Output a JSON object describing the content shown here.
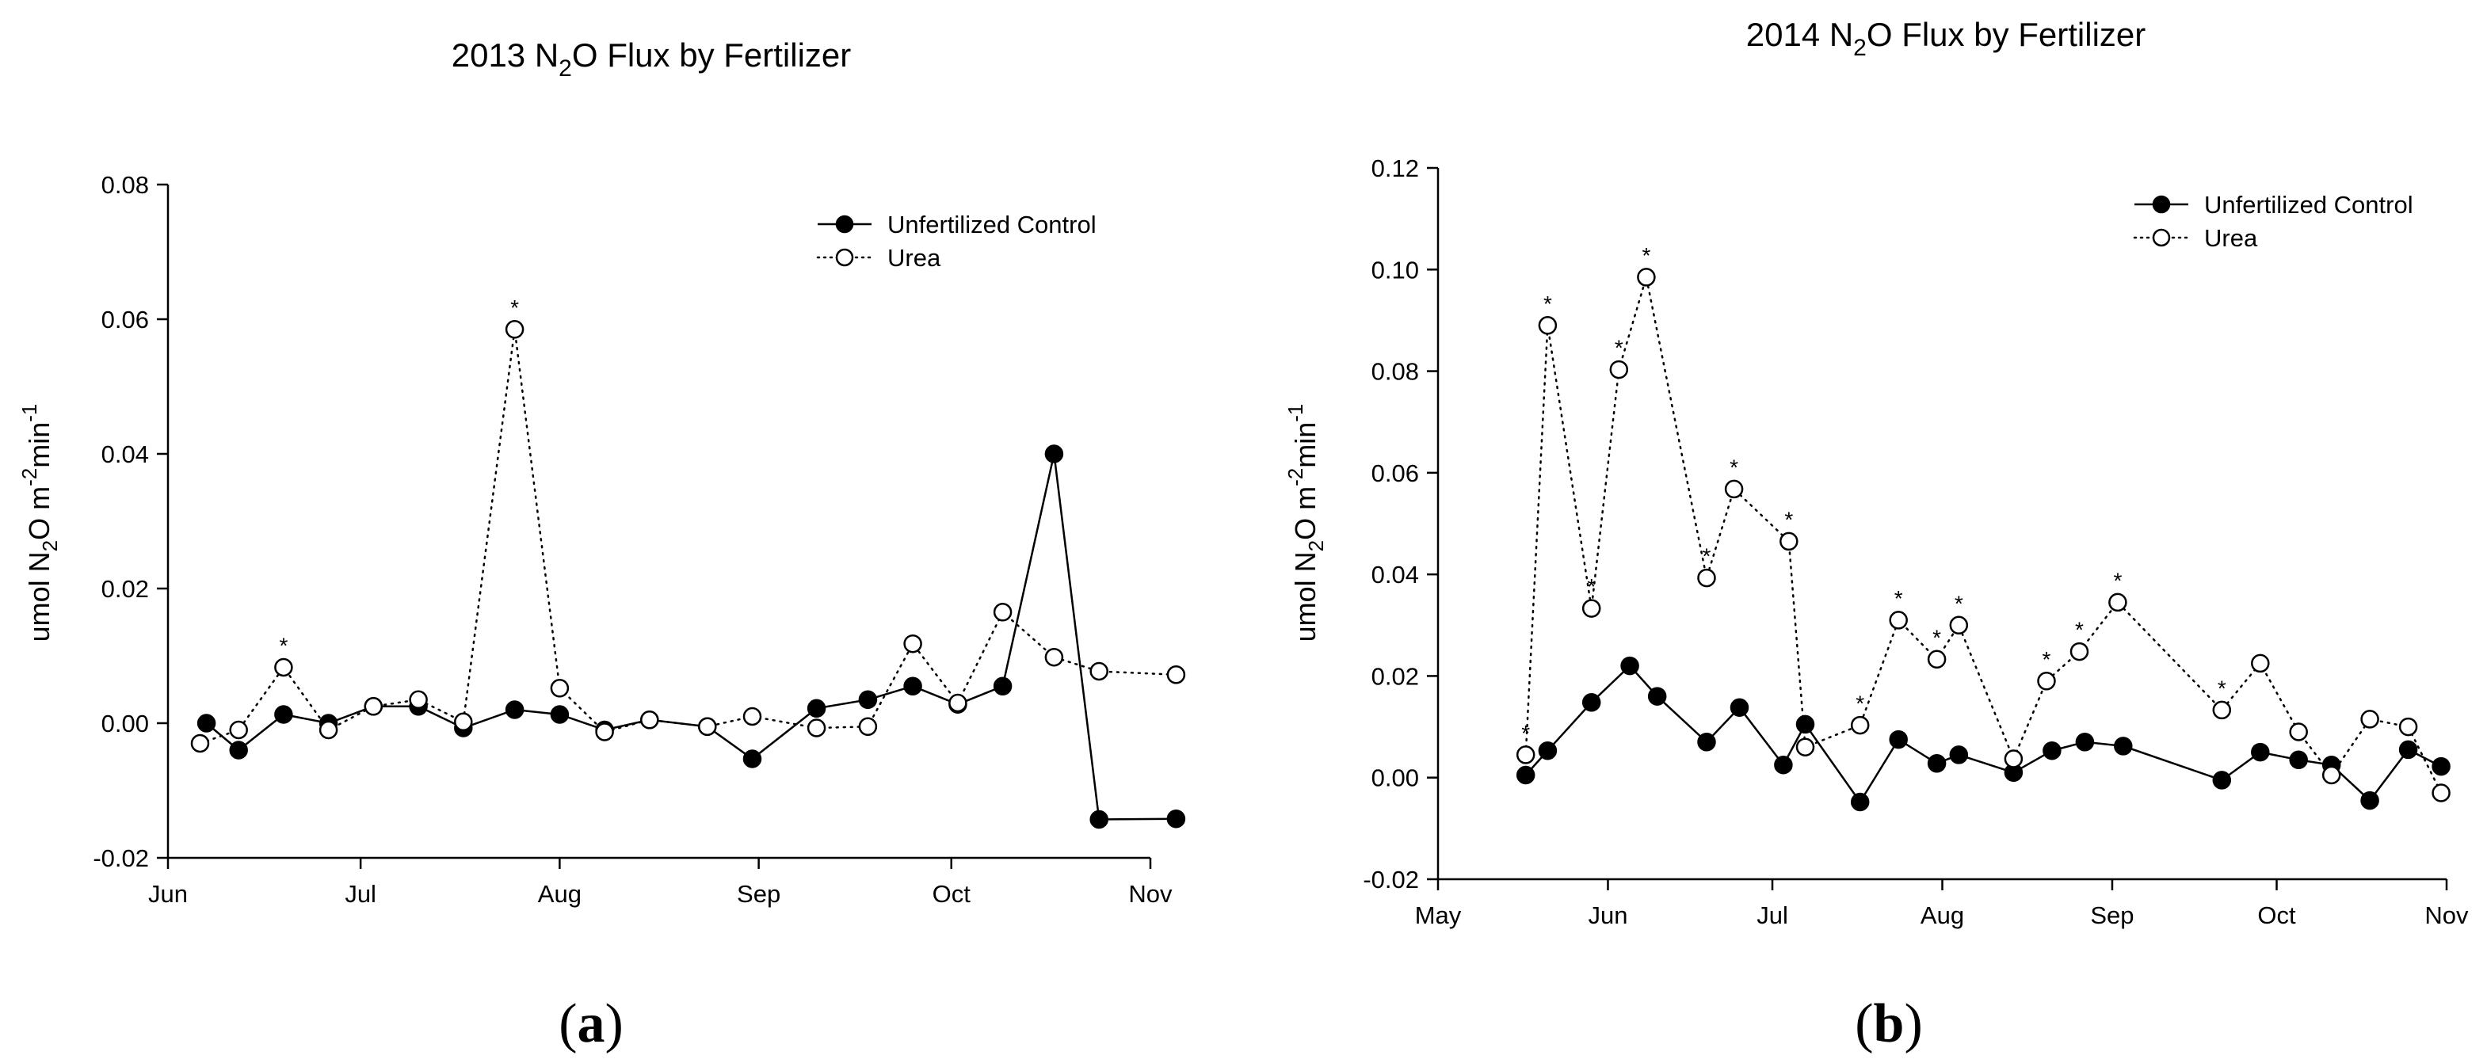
{
  "chart_data": [
    {
      "type": "line",
      "panel": "a",
      "title_prefix": "2013 N",
      "title_sub": "2",
      "title_suffix": "O Flux by Fertilizer",
      "ylabel": {
        "p1": "umol N",
        "s1": "2",
        "p2": "O m",
        "s2": "-2",
        "p3": "min",
        "s3": "-1"
      },
      "xlim": [
        0,
        153
      ],
      "ylim": [
        -0.02,
        0.08
      ],
      "yticks": [
        -0.02,
        0.0,
        0.02,
        0.04,
        0.06,
        0.08
      ],
      "ytick_labels": [
        "-0.02",
        "0.00",
        "0.02",
        "0.04",
        "0.06",
        "0.08"
      ],
      "xticks": [
        0,
        30,
        61,
        92,
        122,
        153
      ],
      "xtick_labels": [
        "Jun",
        "Jul",
        "Aug",
        "Sep",
        "Oct",
        "Nov"
      ],
      "legend": [
        "Unfertilized Control",
        "Urea"
      ],
      "series": [
        {
          "name": "Unfertilized Control",
          "marker": "filled",
          "line": "solid",
          "points": [
            [
              6,
              0.0
            ],
            [
              11,
              -0.004
            ],
            [
              18,
              0.0013
            ],
            [
              25,
              0.0
            ],
            [
              32,
              0.0025
            ],
            [
              39,
              0.0025
            ],
            [
              46,
              -0.0007
            ],
            [
              54,
              0.002
            ],
            [
              61,
              0.0013
            ],
            [
              68,
              -0.001
            ],
            [
              75,
              0.0005
            ],
            [
              84,
              -0.0005
            ],
            [
              91,
              -0.0053
            ],
            [
              101,
              0.0022
            ],
            [
              109,
              0.0035
            ],
            [
              116,
              0.0055
            ],
            [
              123,
              0.0028
            ],
            [
              130,
              0.0055
            ],
            [
              138,
              0.04
            ],
            [
              145,
              -0.0143
            ],
            [
              157,
              -0.0142
            ]
          ]
        },
        {
          "name": "Urea",
          "marker": "open",
          "line": "dotted",
          "points": [
            [
              5,
              -0.003
            ],
            [
              11,
              -0.001
            ],
            [
              18,
              0.0083
            ],
            [
              25,
              -0.001
            ],
            [
              32,
              0.0025
            ],
            [
              39,
              0.0035
            ],
            [
              46,
              0.0002
            ],
            [
              54,
              0.0585
            ],
            [
              61,
              0.0052
            ],
            [
              68,
              -0.0013
            ],
            [
              75,
              0.0005
            ],
            [
              84,
              -0.0005
            ],
            [
              91,
              0.001
            ],
            [
              101,
              -0.0007
            ],
            [
              109,
              -0.0005
            ],
            [
              116,
              0.0118
            ],
            [
              123,
              0.003
            ],
            [
              130,
              0.0165
            ],
            [
              138,
              0.0098
            ],
            [
              145,
              0.0077
            ],
            [
              157,
              0.0072
            ]
          ]
        }
      ],
      "significance": [
        [
          18,
          0.0083
        ],
        [
          54,
          0.0585
        ]
      ],
      "significance_mark": "*"
    },
    {
      "type": "line",
      "panel": "b",
      "title_prefix": "2014 N",
      "title_sub": "2",
      "title_suffix": "O Flux by Fertilizer",
      "ylabel": {
        "p1": "umol N",
        "s1": "2",
        "p2": "O m",
        "s2": "-2",
        "p3": "min",
        "s3": "-1"
      },
      "xlim": [
        0,
        184
      ],
      "ylim": [
        -0.02,
        0.12
      ],
      "yticks": [
        -0.02,
        0.0,
        0.02,
        0.04,
        0.06,
        0.08,
        0.1,
        0.12
      ],
      "ytick_labels": [
        "-0.02",
        "0.00",
        "0.02",
        "0.04",
        "0.06",
        "0.08",
        "0.10",
        "0.12"
      ],
      "xticks": [
        0,
        31,
        61,
        92,
        123,
        153,
        184
      ],
      "xtick_labels": [
        "May",
        "Jun",
        "Jul",
        "Aug",
        "Sep",
        "Oct",
        "Nov"
      ],
      "legend": [
        "Unfertilized Control",
        "Urea"
      ],
      "series": [
        {
          "name": "Unfertilized Control",
          "marker": "filled",
          "line": "solid",
          "points": [
            [
              16,
              0.0005
            ],
            [
              20,
              0.0053
            ],
            [
              28,
              0.0148
            ],
            [
              35,
              0.022
            ],
            [
              40,
              0.016
            ],
            [
              49,
              0.007
            ],
            [
              55,
              0.0138
            ],
            [
              63,
              0.0025
            ],
            [
              67,
              0.0105
            ],
            [
              77,
              -0.0048
            ],
            [
              84,
              0.0075
            ],
            [
              91,
              0.0028
            ],
            [
              95,
              0.0045
            ],
            [
              105,
              0.001
            ],
            [
              112,
              0.0053
            ],
            [
              118,
              0.007
            ],
            [
              125,
              0.0062
            ],
            [
              143,
              -0.0005
            ],
            [
              150,
              0.005
            ],
            [
              157,
              0.0035
            ],
            [
              163,
              0.0025
            ],
            [
              170,
              -0.0045
            ],
            [
              177,
              0.0055
            ],
            [
              183,
              0.0022
            ]
          ]
        },
        {
          "name": "Urea",
          "marker": "open",
          "line": "dotted",
          "points": [
            [
              16,
              0.0045
            ],
            [
              20,
              0.089
            ],
            [
              28,
              0.0333
            ],
            [
              33,
              0.0803
            ],
            [
              38,
              0.0985
            ],
            [
              49,
              0.0393
            ],
            [
              54,
              0.0568
            ],
            [
              64,
              0.0465
            ],
            [
              67,
              0.006
            ],
            [
              77,
              0.0103
            ],
            [
              84,
              0.031
            ],
            [
              91,
              0.0233
            ],
            [
              95,
              0.03
            ],
            [
              105,
              0.0037
            ],
            [
              111,
              0.019
            ],
            [
              117,
              0.0248
            ],
            [
              124,
              0.0345
            ],
            [
              143,
              0.0133
            ],
            [
              150,
              0.0225
            ],
            [
              157,
              0.009
            ],
            [
              163,
              0.0005
            ],
            [
              170,
              0.0115
            ],
            [
              177,
              0.01
            ],
            [
              183,
              -0.003
            ]
          ]
        }
      ],
      "significance": [
        [
          16,
          0.0045
        ],
        [
          20,
          0.089
        ],
        [
          28,
          0.0333
        ],
        [
          33,
          0.0803
        ],
        [
          38,
          0.0985
        ],
        [
          49,
          0.0393
        ],
        [
          54,
          0.0568
        ],
        [
          64,
          0.0465
        ],
        [
          77,
          0.0103
        ],
        [
          84,
          0.031
        ],
        [
          91,
          0.0233
        ],
        [
          95,
          0.03
        ],
        [
          111,
          0.019
        ],
        [
          117,
          0.0248
        ],
        [
          124,
          0.0345
        ],
        [
          143,
          0.0133
        ]
      ],
      "significance_mark": "*"
    }
  ]
}
